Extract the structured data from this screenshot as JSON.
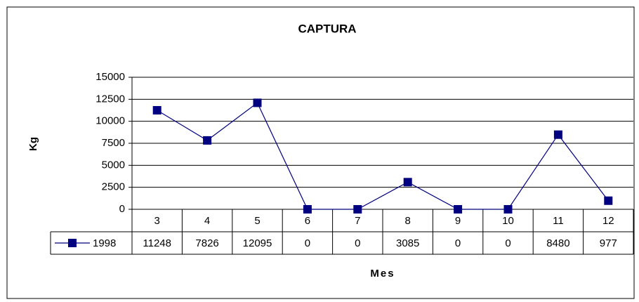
{
  "chart_data": {
    "type": "line",
    "title": "CAPTURA",
    "y_label": "Kg",
    "x_label": "Mes",
    "categories": [
      "3",
      "4",
      "5",
      "6",
      "7",
      "8",
      "9",
      "10",
      "11",
      "12"
    ],
    "series": [
      {
        "name": "1998",
        "color": "#000080",
        "values": [
          11248,
          7826,
          12095,
          0,
          0,
          3085,
          0,
          0,
          8480,
          977
        ]
      }
    ],
    "ylim": [
      0,
      15000
    ],
    "yticks": [
      0,
      2500,
      5000,
      7500,
      10000,
      12500,
      15000
    ],
    "grid": true,
    "data_table": true
  }
}
